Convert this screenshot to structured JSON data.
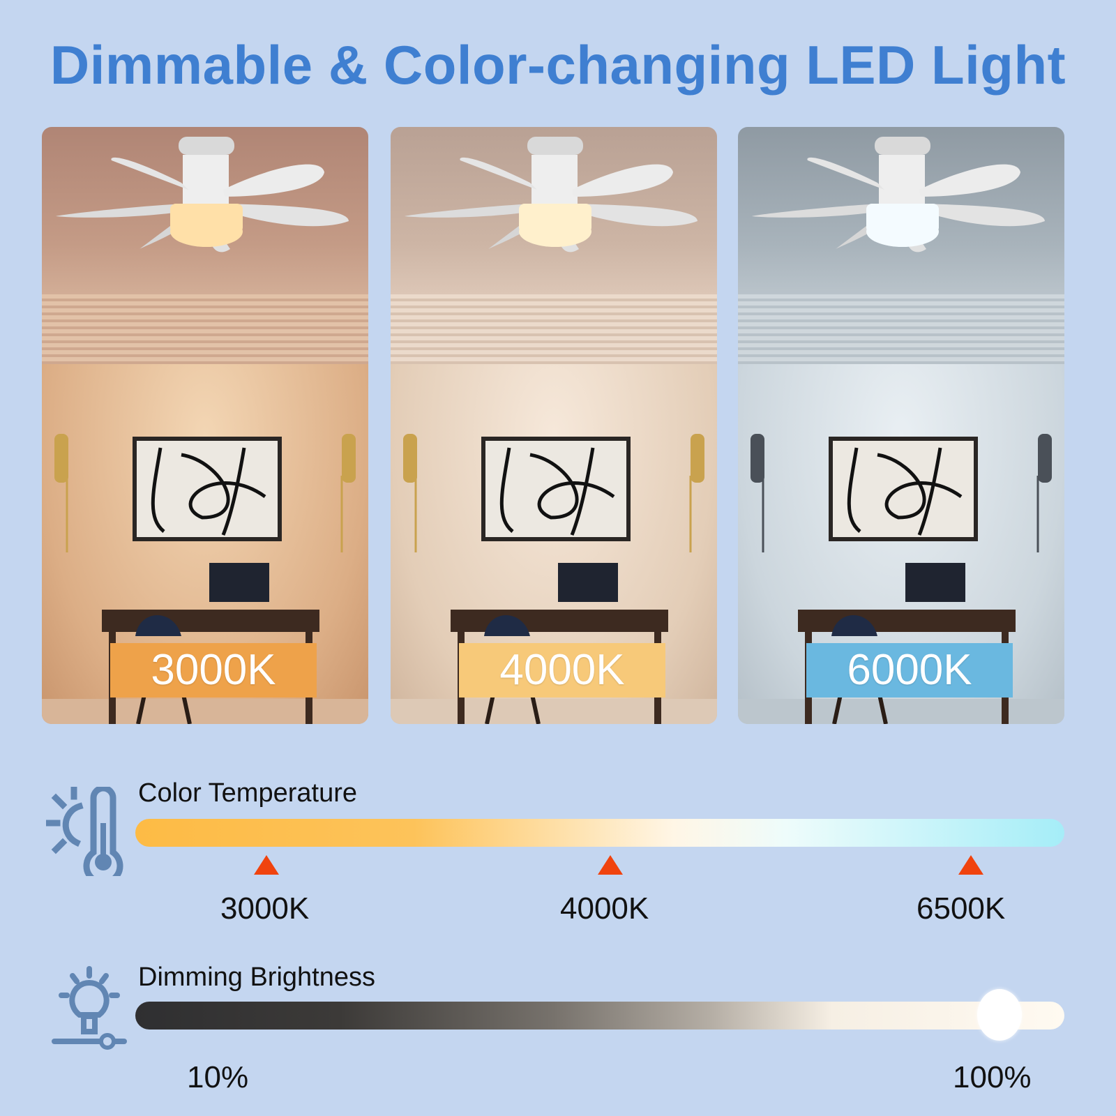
{
  "title": "Dimmable & Color-changing LED Light",
  "panels": [
    {
      "label": "3000K",
      "label_color": "#eea24a",
      "light_color": "#ffe0a8"
    },
    {
      "label": "4000K",
      "label_color": "#f7c979",
      "light_color": "#fff0cc"
    },
    {
      "label": "6000K",
      "label_color": "#6ab8e0",
      "light_color": "#f4fbff"
    }
  ],
  "color_temperature": {
    "icon": "thermometer-sun-icon",
    "label": "Color Temperature",
    "gradient": [
      "#fdbb45",
      "#fffbf2",
      "#a5edf8"
    ],
    "markers": [
      {
        "value": "3000K"
      },
      {
        "value": "4000K"
      },
      {
        "value": "6500K"
      }
    ]
  },
  "dimming": {
    "icon": "bulb-slider-icon",
    "label": "Dimming Brightness",
    "min": "10%",
    "max": "100%",
    "level_percent": 93
  },
  "colors": {
    "accent": "#3f7fd1",
    "marker": "#f0430e",
    "icon": "#6186b3",
    "background": "#c4d6f0"
  }
}
